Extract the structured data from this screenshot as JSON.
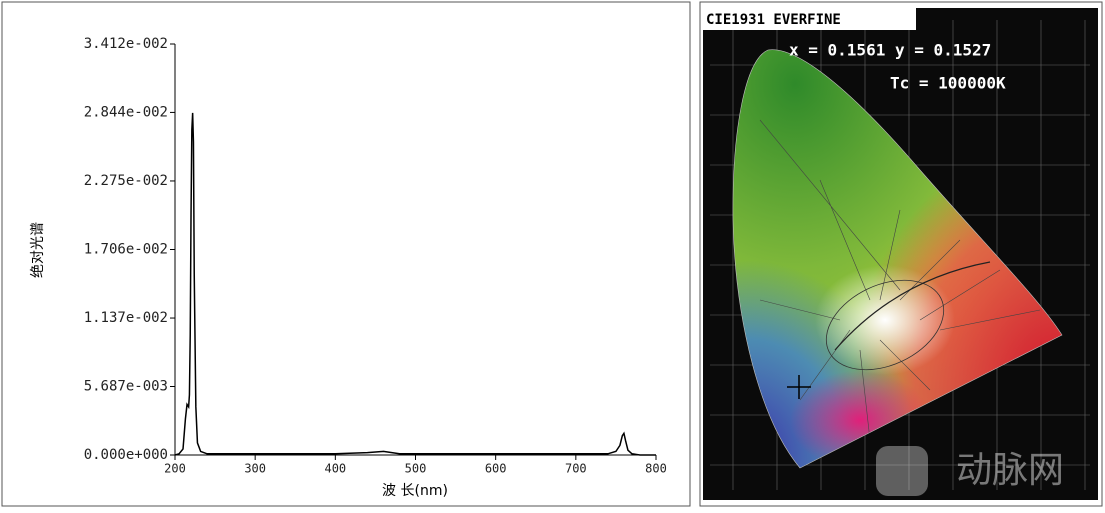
{
  "chart_data": {
    "type": "line",
    "y_label": "绝对光谱",
    "x_label": "波 长(nm)",
    "x": [
      200,
      205,
      210,
      213,
      215,
      217,
      218,
      219,
      220,
      221,
      222,
      223,
      224,
      226,
      228,
      232,
      240,
      260,
      300,
      400,
      440,
      460,
      480,
      520,
      600,
      700,
      740,
      750,
      755,
      758,
      760,
      762,
      765,
      770,
      780,
      800
    ],
    "values": [
      0,
      0.0001,
      0.0005,
      0.003,
      0.0042,
      0.004,
      0.005,
      0.01,
      0.02,
      0.027,
      0.0284,
      0.026,
      0.015,
      0.004,
      0.001,
      0.0003,
      0.0001,
      0.0001,
      0.0001,
      0.0001,
      0.0002,
      0.0003,
      0.0001,
      0.0001,
      0.0001,
      0.0001,
      0.0001,
      0.0003,
      0.0008,
      0.0016,
      0.0018,
      0.0012,
      0.0004,
      0.0001,
      0,
      0
    ],
    "color": "#000000",
    "xlim": [
      200,
      800
    ],
    "xticks": [
      200,
      300,
      400,
      500,
      600,
      700,
      800
    ],
    "ylim": [
      0,
      0.03412
    ],
    "yticks": [
      {
        "value": 0,
        "label": "0.000e+000"
      },
      {
        "value": 0.005687,
        "label": "5.687e-003"
      },
      {
        "value": 0.01137,
        "label": "1.137e-002"
      },
      {
        "value": 0.01706,
        "label": "1.706e-002"
      },
      {
        "value": 0.02275,
        "label": "2.275e-002"
      },
      {
        "value": 0.02844,
        "label": "2.844e-002"
      },
      {
        "value": 0.03412,
        "label": "3.412e-002"
      }
    ]
  },
  "cie_panel": {
    "title": "CIE1931 EVERFINE",
    "coordinates": "x = 0.1561 y = 0.1527",
    "tc": "Tc = 100000K",
    "watermark": "动脉网"
  }
}
